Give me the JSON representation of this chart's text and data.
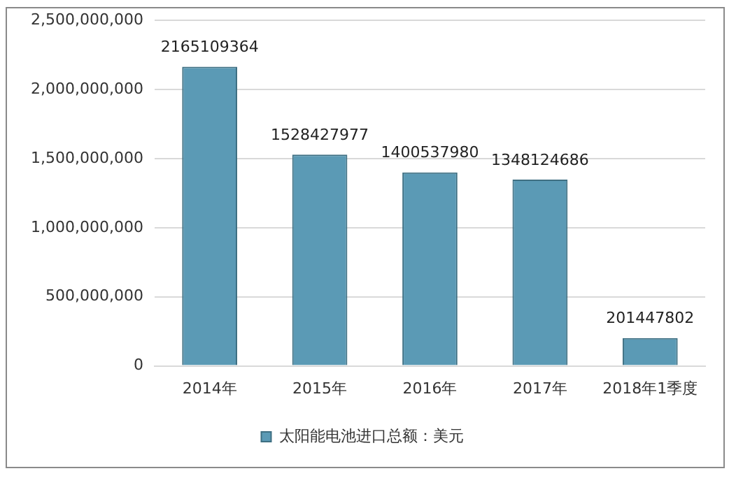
{
  "chart_data": {
    "type": "bar",
    "categories": [
      "2014年",
      "2015年",
      "2016年",
      "2017年",
      "2018年1季度"
    ],
    "series": [
      {
        "name": "太阳能电池进口总额：美元",
        "color": "#5b9ab5",
        "values": [
          2165109364,
          1528427977,
          1400537980,
          1348124686,
          201447802
        ]
      }
    ],
    "ylim": [
      0,
      2500000000
    ],
    "yticks": [
      {
        "value": 0,
        "label": "0"
      },
      {
        "value": 500000000,
        "label": "500,000,000"
      },
      {
        "value": 1000000000,
        "label": "1,000,000,000"
      },
      {
        "value": 1500000000,
        "label": "1,500,000,000"
      },
      {
        "value": 2000000000,
        "label": "2,000,000,000"
      },
      {
        "value": 2500000000,
        "label": "2,500,000,000"
      }
    ],
    "grid": "y",
    "legend": "bottom",
    "data_labels": true
  }
}
